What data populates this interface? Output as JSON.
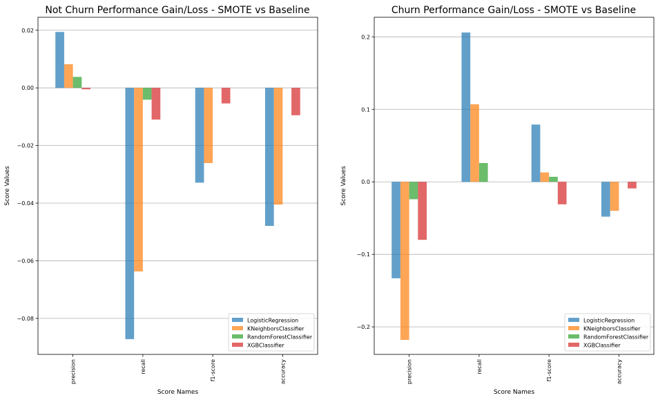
{
  "colors": {
    "series": [
      "#1f77b4",
      "#ff7f0e",
      "#2ca02c",
      "#d62728"
    ],
    "bar_opacity": 0.7
  },
  "chart_data": [
    {
      "type": "bar",
      "title": "Not Churn Performance Gain/Loss - SMOTE vs Baseline",
      "xlabel": "Score Names",
      "ylabel": "Score Values",
      "categories": [
        "precision",
        "recall",
        "f1-score",
        "accuracy"
      ],
      "series": [
        {
          "name": "LogisticRegression",
          "values": [
            0.0194,
            -0.0872,
            -0.0329,
            -0.0479
          ]
        },
        {
          "name": "KNeighborsClassifier",
          "values": [
            0.0082,
            -0.0637,
            -0.0261,
            -0.0405
          ]
        },
        {
          "name": "RandomForestClassifier",
          "values": [
            0.0038,
            -0.0041,
            0.0,
            0.0
          ]
        },
        {
          "name": "XGBClassifier",
          "values": [
            -0.0005,
            -0.011,
            -0.0054,
            -0.0095
          ]
        }
      ],
      "ylim": [
        -0.0925,
        0.0245
      ],
      "yticks": [
        0.02,
        0.0,
        -0.02,
        -0.04,
        -0.06,
        -0.08
      ],
      "ytick_labels": [
        "0.02",
        "0.00",
        "−0.02",
        "−0.04",
        "−0.06",
        "−0.08"
      ],
      "grid": "y",
      "legend": "lower-right"
    },
    {
      "type": "bar",
      "title": "Churn Performance Gain/Loss - SMOTE vs Baseline",
      "xlabel": "Score Names",
      "ylabel": "Score Values",
      "categories": [
        "precision",
        "recall",
        "f1-score",
        "accuracy"
      ],
      "series": [
        {
          "name": "LogisticRegression",
          "values": [
            -0.133,
            0.206,
            0.079,
            -0.048
          ]
        },
        {
          "name": "KNeighborsClassifier",
          "values": [
            -0.218,
            0.107,
            0.013,
            -0.04
          ]
        },
        {
          "name": "RandomForestClassifier",
          "values": [
            -0.024,
            0.026,
            0.007,
            0.0
          ]
        },
        {
          "name": "XGBClassifier",
          "values": [
            -0.08,
            0.0,
            -0.031,
            -0.009
          ]
        }
      ],
      "ylim": [
        -0.238,
        0.227
      ],
      "yticks": [
        0.2,
        0.1,
        0.0,
        -0.1,
        -0.2
      ],
      "ytick_labels": [
        "0.2",
        "0.1",
        "0.0",
        "−0.1",
        "−0.2"
      ],
      "grid": "y",
      "legend": "lower-right"
    }
  ]
}
